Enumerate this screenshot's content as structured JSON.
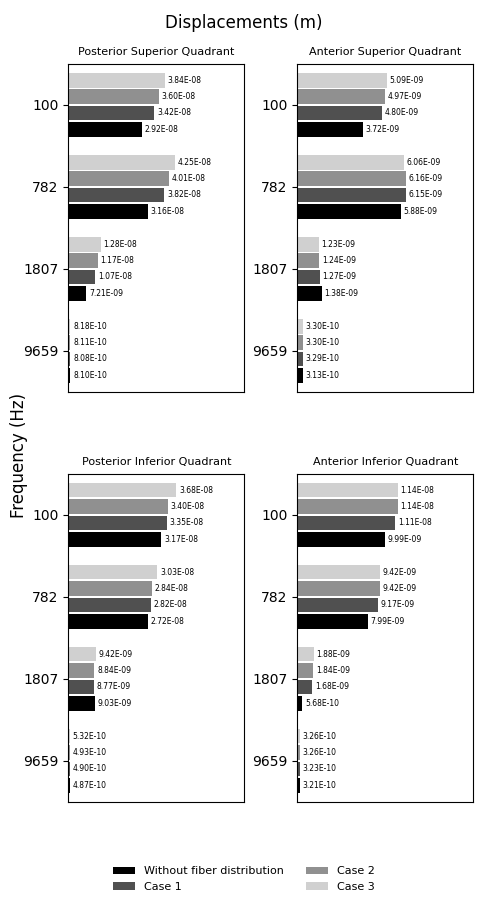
{
  "title": "Displacements (m)",
  "ylabel": "Frequency (Hz)",
  "legend": "lower center",
  "chart_data": [
    {
      "type": "bar",
      "orientation": "horizontal",
      "title": "Posterior Superior Quadrant",
      "categories": [
        "100",
        "782",
        "1807",
        "9659"
      ],
      "xlim": [
        0,
        7e-08
      ],
      "tick_labels": "y",
      "data_labels": true,
      "grid": false,
      "series": [
        {
          "name": "Without fiber distribution",
          "color": "#000000",
          "values": [
            2.92e-08,
            3.16e-08,
            7.21e-09,
            8.1e-10
          ],
          "value_labels": [
            "2.92E-08",
            "3.16E-08",
            "7.21E-09",
            "8.10E-10"
          ]
        },
        {
          "name": "Case 1",
          "color": "#505050",
          "values": [
            3.42e-08,
            3.82e-08,
            1.07e-08,
            8.08e-10
          ],
          "value_labels": [
            "3.42E-08",
            "3.82E-08",
            "1.07E-08",
            "8.08E-10"
          ]
        },
        {
          "name": "Case 2",
          "color": "#909090",
          "values": [
            3.6e-08,
            4.01e-08,
            1.17e-08,
            8.11e-10
          ],
          "value_labels": [
            "3.60E-08",
            "4.01E-08",
            "1.17E-08",
            "8.11E-10"
          ]
        },
        {
          "name": "Case 3",
          "color": "#d0d0d0",
          "values": [
            3.84e-08,
            4.25e-08,
            1.28e-08,
            8.18e-10
          ],
          "value_labels": [
            "3.84E-08",
            "4.25E-08",
            "1.28E-08",
            "8.18E-10"
          ]
        }
      ]
    },
    {
      "type": "bar",
      "orientation": "horizontal",
      "title": "Anterior Superior Quadrant",
      "categories": [
        "100",
        "782",
        "1807",
        "9659"
      ],
      "xlim": [
        0,
        1e-08
      ],
      "tick_labels": "y",
      "data_labels": true,
      "grid": false,
      "series": [
        {
          "name": "Without fiber distribution",
          "color": "#000000",
          "values": [
            3.72e-09,
            5.88e-09,
            1.38e-09,
            3.13e-10
          ],
          "value_labels": [
            "3.72E-09",
            "5.88E-09",
            "1.38E-09",
            "3.13E-10"
          ]
        },
        {
          "name": "Case 1",
          "color": "#505050",
          "values": [
            4.8e-09,
            6.15e-09,
            1.27e-09,
            3.29e-10
          ],
          "value_labels": [
            "4.80E-09",
            "6.15E-09",
            "1.27E-09",
            "3.29E-10"
          ]
        },
        {
          "name": "Case 2",
          "color": "#909090",
          "values": [
            4.97e-09,
            6.16e-09,
            1.24e-09,
            3.3e-10
          ],
          "value_labels": [
            "4.97E-09",
            "6.16E-09",
            "1.24E-09",
            "3.30E-10"
          ]
        },
        {
          "name": "Case 3",
          "color": "#d0d0d0",
          "values": [
            5.09e-09,
            6.06e-09,
            1.23e-09,
            3.3e-10
          ],
          "value_labels": [
            "5.09E-09",
            "6.06E-09",
            "1.23E-09",
            "3.30E-10"
          ]
        }
      ]
    },
    {
      "type": "bar",
      "orientation": "horizontal",
      "title": "Posterior Inferior Quadrant",
      "categories": [
        "100",
        "782",
        "1807",
        "9659"
      ],
      "xlim": [
        0,
        6e-08
      ],
      "tick_labels": "y",
      "data_labels": true,
      "grid": false,
      "series": [
        {
          "name": "Without fiber distribution",
          "color": "#000000",
          "values": [
            3.17e-08,
            2.72e-08,
            9.03e-09,
            4.87e-10
          ],
          "value_labels": [
            "3.17E-08",
            "2.72E-08",
            "9.03E-09",
            "4.87E-10"
          ]
        },
        {
          "name": "Case 1",
          "color": "#505050",
          "values": [
            3.35e-08,
            2.82e-08,
            8.77e-09,
            4.9e-10
          ],
          "value_labels": [
            "3.35E-08",
            "2.82E-08",
            "8.77E-09",
            "4.90E-10"
          ]
        },
        {
          "name": "Case 2",
          "color": "#909090",
          "values": [
            3.4e-08,
            2.84e-08,
            8.84e-09,
            4.93e-10
          ],
          "value_labels": [
            "3.40E-08",
            "2.84E-08",
            "8.84E-09",
            "4.93E-10"
          ]
        },
        {
          "name": "Case 3",
          "color": "#d0d0d0",
          "values": [
            3.68e-08,
            3.03e-08,
            9.42e-09,
            5.32e-10
          ],
          "value_labels": [
            "3.68E-08",
            "3.03E-08",
            "9.42E-09",
            "5.32E-10"
          ]
        }
      ]
    },
    {
      "type": "bar",
      "orientation": "horizontal",
      "title": "Anterior Inferior Quadrant",
      "categories": [
        "100",
        "782",
        "1807",
        "9659"
      ],
      "xlim": [
        0,
        2e-08
      ],
      "tick_labels": "y",
      "data_labels": true,
      "grid": false,
      "series": [
        {
          "name": "Without fiber distribution",
          "color": "#000000",
          "values": [
            9.99e-09,
            7.99e-09,
            5.68e-10,
            3.21e-10
          ],
          "value_labels": [
            "9.99E-09",
            "7.99E-09",
            "5.68E-10",
            "3.21E-10"
          ]
        },
        {
          "name": "Case 1",
          "color": "#505050",
          "values": [
            1.11e-08,
            9.17e-09,
            1.68e-09,
            3.23e-10
          ],
          "value_labels": [
            "1.11E-08",
            "9.17E-09",
            "1.68E-09",
            "3.23E-10"
          ]
        },
        {
          "name": "Case 2",
          "color": "#909090",
          "values": [
            1.14e-08,
            9.42e-09,
            1.84e-09,
            3.26e-10
          ],
          "value_labels": [
            "1.14E-08",
            "9.42E-09",
            "1.84E-09",
            "3.26E-10"
          ]
        },
        {
          "name": "Case 3",
          "color": "#d0d0d0",
          "values": [
            1.14e-08,
            9.42e-09,
            1.88e-09,
            3.26e-10
          ],
          "value_labels": [
            "1.14E-08",
            "9.42E-09",
            "1.88E-09",
            "3.26E-10"
          ]
        }
      ]
    }
  ]
}
